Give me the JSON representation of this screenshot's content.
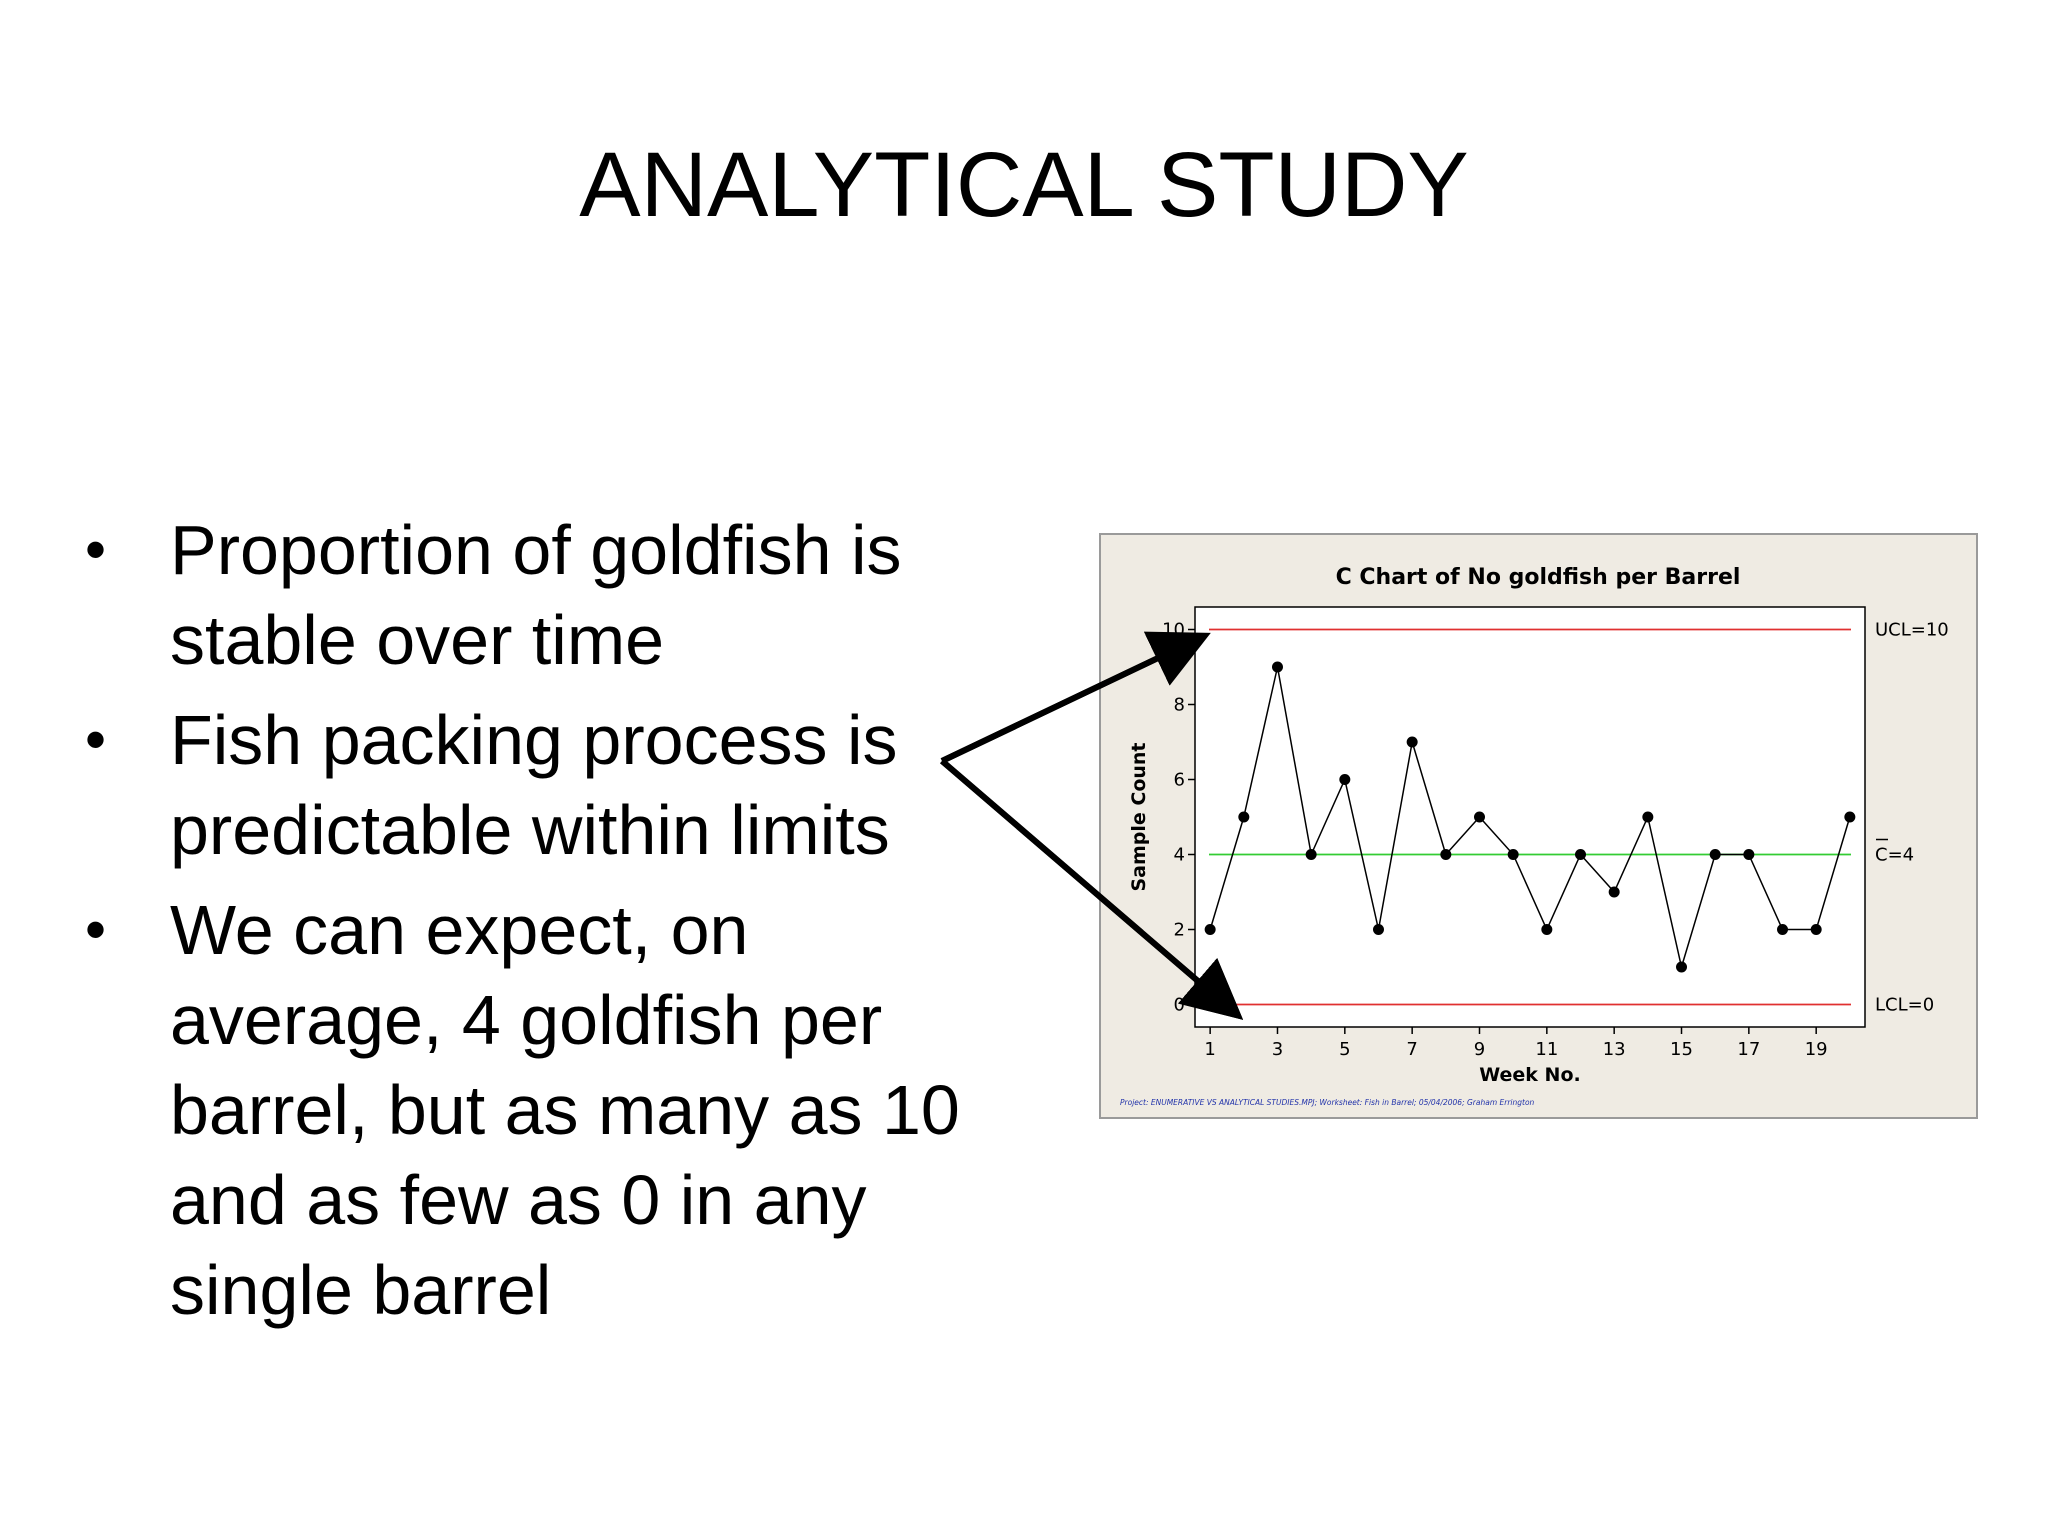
{
  "slide": {
    "title": "ANALYTICAL STUDY",
    "bullet_symbol": "•",
    "bullets": [
      "Proportion of goldfish is stable over time",
      "Fish packing process is predictable within limits",
      "We can expect, on average, 4 goldfish per barrel, but as many as 10 and as few as 0 in any single barrel"
    ]
  },
  "chart_data": {
    "type": "line",
    "title": "C Chart of No goldfish per Barrel",
    "xlabel": "Week No.",
    "ylabel": "Sample Count",
    "x": [
      1,
      2,
      3,
      4,
      5,
      6,
      7,
      8,
      9,
      10,
      11,
      12,
      13,
      14,
      15,
      16,
      17,
      18,
      19,
      20
    ],
    "values": [
      2,
      5,
      9,
      4,
      6,
      2,
      7,
      4,
      5,
      4,
      2,
      4,
      3,
      5,
      1,
      4,
      4,
      2,
      2,
      5
    ],
    "x_ticks": [
      1,
      3,
      5,
      7,
      9,
      11,
      13,
      15,
      17,
      19
    ],
    "y_ticks": [
      0,
      2,
      4,
      6,
      8,
      10
    ],
    "ylim": [
      -0.6,
      10.6
    ],
    "xlim": [
      0.55,
      20.45
    ],
    "control_limits": {
      "ucl": {
        "value": 10,
        "label": "UCL=10",
        "color": "#e03030"
      },
      "center": {
        "value": 4,
        "label": "C=4",
        "color": "#33cc33"
      },
      "lcl": {
        "value": 0,
        "label": "LCL=0",
        "color": "#e03030"
      }
    },
    "footnote": "Project: ENUMERATIVE VS ANALYTICAL STUDIES.MPJ; Worksheet: Fish in Barrel; 05/04/2006; Graham Errington",
    "colors": {
      "panel_bg": "#efebe3",
      "plot_bg": "#ffffff",
      "series": "#000000",
      "footnote": "#2233aa"
    },
    "grid": false
  }
}
